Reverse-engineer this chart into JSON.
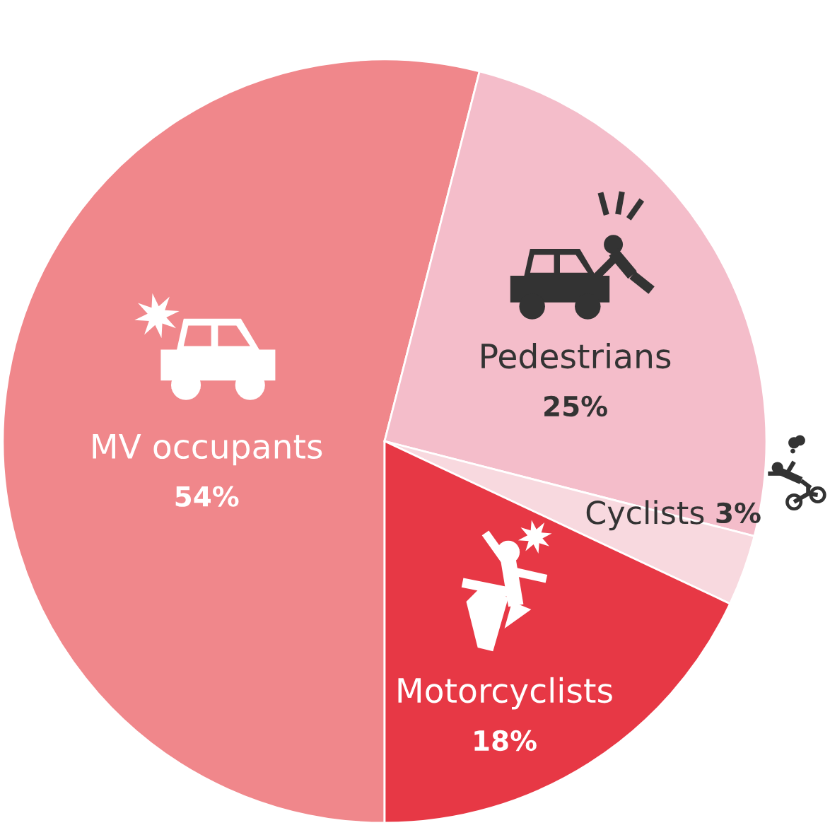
{
  "chart_data": {
    "type": "pie",
    "categories": [
      "MV occupants",
      "Pedestrians",
      "Cyclists",
      "Motorcyclists"
    ],
    "values": [
      54,
      25,
      3,
      18
    ],
    "colors": [
      "#f0878b",
      "#f4bdca",
      "#f8d9df",
      "#e73845"
    ],
    "value_labels": [
      "54%",
      "25%",
      "3%",
      "18%"
    ]
  }
}
